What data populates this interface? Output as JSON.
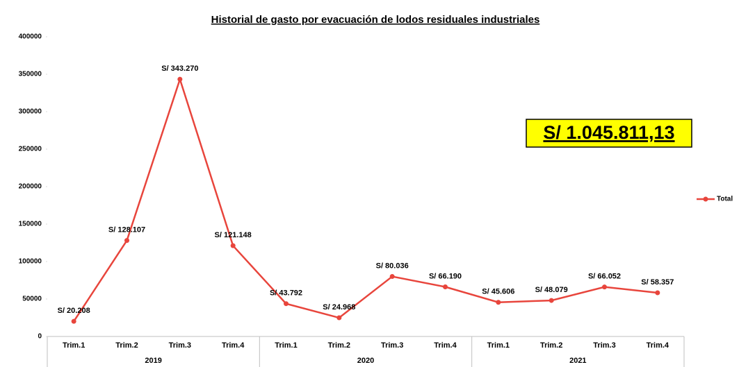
{
  "chart_data": {
    "type": "line",
    "title": "Historial de gasto por evacuación de lodos residuales industriales",
    "categories": [
      "Trim.1",
      "Trim.2",
      "Trim.3",
      "Trim.4",
      "Trim.1",
      "Trim.2",
      "Trim.3",
      "Trim.4",
      "Trim.1",
      "Trim.2",
      "Trim.3",
      "Trim.4"
    ],
    "years": [
      "2019",
      "2020",
      "2021"
    ],
    "series": [
      {
        "name": "Total",
        "color": "#e8453c",
        "values": [
          20208,
          128107,
          343270,
          121148,
          43792,
          24968,
          80036,
          66190,
          45606,
          48079,
          66052,
          58357
        ],
        "value_labels": [
          "S/ 20.208",
          "S/ 128.107",
          "S/ 343.270",
          "S/ 121.148",
          "S/ 43.792",
          "S/ 24.968",
          "S/ 80.036",
          "S/ 66.190",
          "S/ 45.606",
          "S/ 48.079",
          "S/ 66.052",
          "S/ 58.357"
        ]
      }
    ],
    "ylim": [
      0,
      400000
    ],
    "yticks": [
      0,
      50000,
      100000,
      150000,
      200000,
      250000,
      300000,
      350000,
      400000
    ],
    "annotation": "S/ 1.045.811,13",
    "legend": "right"
  }
}
